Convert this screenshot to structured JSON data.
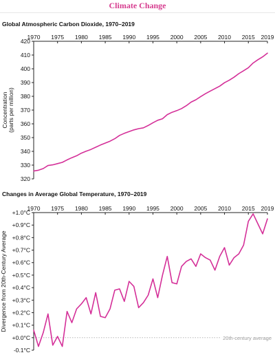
{
  "header": {
    "title": "Climate Change"
  },
  "colors": {
    "accent": "#d63c8f",
    "line": "#d42f98",
    "axis": "#222222",
    "reference": "#aaaaaa"
  },
  "chart_data": [
    {
      "type": "line",
      "title": "Global Atmospheric Carbon Dioxide, 1970–2019",
      "ylabel": "Concentration (parts per million)",
      "ylabel_lines": [
        "Concentration",
        "(parts per million)"
      ],
      "xlim": [
        1970,
        2019
      ],
      "ylim": [
        320,
        420
      ],
      "x_ticks": [
        1970,
        1975,
        1980,
        1985,
        1990,
        1995,
        2000,
        2005,
        2010,
        2015,
        2019
      ],
      "y_ticks": [
        320,
        330,
        340,
        350,
        360,
        370,
        380,
        390,
        400,
        410,
        420
      ],
      "series": [
        {
          "x": [
            1970,
            1971,
            1972,
            1973,
            1974,
            1975,
            1976,
            1977,
            1978,
            1979,
            1980,
            1981,
            1982,
            1983,
            1984,
            1985,
            1986,
            1987,
            1988,
            1989,
            1990,
            1991,
            1992,
            1993,
            1994,
            1995,
            1996,
            1997,
            1998,
            1999,
            2000,
            2001,
            2002,
            2003,
            2004,
            2005,
            2006,
            2007,
            2008,
            2009,
            2010,
            2011,
            2012,
            2013,
            2014,
            2015,
            2016,
            2017,
            2018,
            2019
          ],
          "y": [
            325.7,
            326.3,
            327.5,
            329.7,
            330.2,
            331.1,
            332.0,
            333.8,
            335.4,
            336.8,
            338.7,
            340.1,
            341.4,
            343.0,
            344.6,
            346.0,
            347.4,
            349.2,
            351.6,
            353.1,
            354.4,
            355.6,
            356.5,
            357.1,
            358.8,
            360.8,
            362.6,
            363.7,
            366.7,
            368.4,
            369.6,
            371.1,
            373.2,
            375.8,
            377.5,
            379.8,
            381.9,
            383.8,
            385.6,
            387.4,
            389.9,
            391.7,
            393.9,
            396.5,
            398.6,
            400.8,
            404.2,
            406.6,
            408.7,
            411.4
          ]
        }
      ]
    },
    {
      "type": "line",
      "title": "Changes in Average Global Temperature, 1970–2019",
      "ylabel": "Divergence from 20th-Century Average",
      "xlim": [
        1970,
        2019
      ],
      "ylim": [
        -0.1,
        1.0
      ],
      "x_ticks": [
        1970,
        1975,
        1980,
        1985,
        1990,
        1995,
        2000,
        2005,
        2010,
        2015,
        2019
      ],
      "y_ticks": [
        -0.1,
        0.0,
        0.1,
        0.2,
        0.3,
        0.4,
        0.5,
        0.6,
        0.7,
        0.8,
        0.9,
        1.0
      ],
      "y_tick_labels": [
        "-0.1°C",
        "+0.0°C",
        "+0.1°C",
        "+0.2°C",
        "+0.3°C",
        "+0.4°C",
        "+0.5°C",
        "+0.6°C",
        "+0.7°C",
        "+0.8°C",
        "+0.9°C",
        "+1.0°C"
      ],
      "reference_line": {
        "y": 0.0,
        "label": "20th-century average"
      },
      "series": [
        {
          "x": [
            1970,
            1971,
            1972,
            1973,
            1974,
            1975,
            1976,
            1977,
            1978,
            1979,
            1980,
            1981,
            1982,
            1983,
            1984,
            1985,
            1986,
            1987,
            1988,
            1989,
            1990,
            1991,
            1992,
            1993,
            1994,
            1995,
            1996,
            1997,
            1998,
            1999,
            2000,
            2001,
            2002,
            2003,
            2004,
            2005,
            2006,
            2007,
            2008,
            2009,
            2010,
            2011,
            2012,
            2013,
            2014,
            2015,
            2016,
            2017,
            2018,
            2019
          ],
          "y": [
            0.06,
            -0.07,
            0.04,
            0.19,
            -0.06,
            0.01,
            -0.07,
            0.21,
            0.12,
            0.23,
            0.27,
            0.32,
            0.19,
            0.36,
            0.17,
            0.16,
            0.23,
            0.38,
            0.39,
            0.29,
            0.45,
            0.41,
            0.24,
            0.28,
            0.34,
            0.47,
            0.32,
            0.5,
            0.65,
            0.44,
            0.43,
            0.57,
            0.61,
            0.63,
            0.57,
            0.67,
            0.64,
            0.62,
            0.54,
            0.65,
            0.72,
            0.58,
            0.64,
            0.67,
            0.74,
            0.93,
            0.99,
            0.91,
            0.83,
            0.95
          ]
        }
      ]
    }
  ]
}
